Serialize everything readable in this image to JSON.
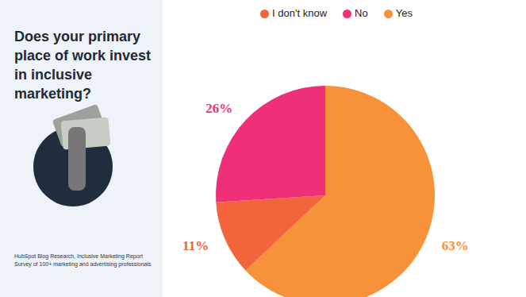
{
  "chart_data": {
    "type": "pie",
    "title": "Does your primary place of work invest in inclusive marketing?",
    "categories": [
      "Yes",
      "I don't know",
      "No"
    ],
    "values": [
      63,
      11,
      26
    ],
    "value_labels": [
      "63%",
      "11%",
      "26%"
    ],
    "colors": [
      "#f7923a",
      "#f2643c",
      "#ef2f78"
    ],
    "data_labels": true,
    "legend": "top",
    "annotations": [
      "HubSpot Blog Research, Inclusive Marketing Report",
      "Survey of 100+ marketing and advertising professionals"
    ]
  }
}
